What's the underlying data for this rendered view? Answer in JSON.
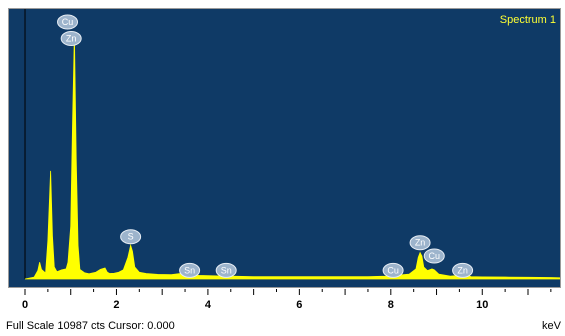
{
  "chart_data": {
    "type": "line",
    "title": "",
    "legend": "Spectrum 1",
    "xlabel": "keV",
    "ylabel": "",
    "xlim": [
      -0.35,
      11.7
    ],
    "ylim": [
      0,
      10987
    ],
    "x_ticks": [
      0,
      2,
      4,
      6,
      8,
      10
    ],
    "fill_color": "#ffff00",
    "background_color": "#0f3a66",
    "series": [
      {
        "x": [
          0.0,
          0.2,
          0.28,
          0.32,
          0.36,
          0.45,
          0.5,
          0.56,
          0.6,
          0.64,
          0.7,
          0.8,
          0.9,
          0.94,
          1.0,
          1.04,
          1.08,
          1.12,
          1.16,
          1.2,
          1.3,
          1.4,
          1.55,
          1.65,
          1.75,
          1.8,
          1.85,
          1.95,
          2.05,
          2.15,
          2.25,
          2.31,
          2.35,
          2.4,
          2.5,
          2.65,
          2.9,
          3.2,
          3.44,
          3.5,
          3.6,
          3.7,
          3.8,
          4.0,
          4.2,
          4.5,
          5.0,
          5.5,
          6.0,
          6.5,
          7.0,
          7.5,
          7.9,
          8.04,
          8.1,
          8.4,
          8.55,
          8.6,
          8.64,
          8.68,
          8.72,
          8.8,
          8.9,
          8.95,
          9.05,
          9.3,
          9.5,
          9.57,
          9.64,
          9.75,
          10.0,
          10.5,
          11.0,
          11.5,
          11.7
        ],
        "y": [
          0,
          80,
          350,
          700,
          400,
          250,
          1600,
          4500,
          1800,
          500,
          300,
          380,
          420,
          700,
          2200,
          6500,
          10200,
          5000,
          1400,
          400,
          260,
          220,
          280,
          400,
          460,
          280,
          230,
          240,
          280,
          380,
          900,
          1400,
          1150,
          500,
          280,
          230,
          190,
          180,
          240,
          260,
          200,
          160,
          150,
          140,
          130,
          120,
          100,
          100,
          100,
          100,
          100,
          100,
          120,
          180,
          150,
          200,
          420,
          900,
          1100,
          950,
          500,
          350,
          420,
          380,
          200,
          120,
          150,
          250,
          180,
          100,
          90,
          80,
          70,
          60,
          50
        ]
      }
    ],
    "peak_labels": [
      {
        "text": "Cu",
        "x": 0.93,
        "y": 10987
      },
      {
        "text": "Zn",
        "x": 1.01,
        "y": 10300
      },
      {
        "text": "S",
        "x": 2.31,
        "y": 2050
      },
      {
        "text": "Sn",
        "x": 3.6,
        "y": 650
      },
      {
        "text": "Sn",
        "x": 4.4,
        "y": 650
      },
      {
        "text": "Cu",
        "x": 8.05,
        "y": 650
      },
      {
        "text": "Zn",
        "x": 8.64,
        "y": 1800
      },
      {
        "text": "Cu",
        "x": 8.95,
        "y": 1250
      },
      {
        "text": "Zn",
        "x": 9.57,
        "y": 650
      }
    ]
  },
  "status": {
    "full_scale": "Full Scale 10987 cts Cursor: 0.000"
  }
}
